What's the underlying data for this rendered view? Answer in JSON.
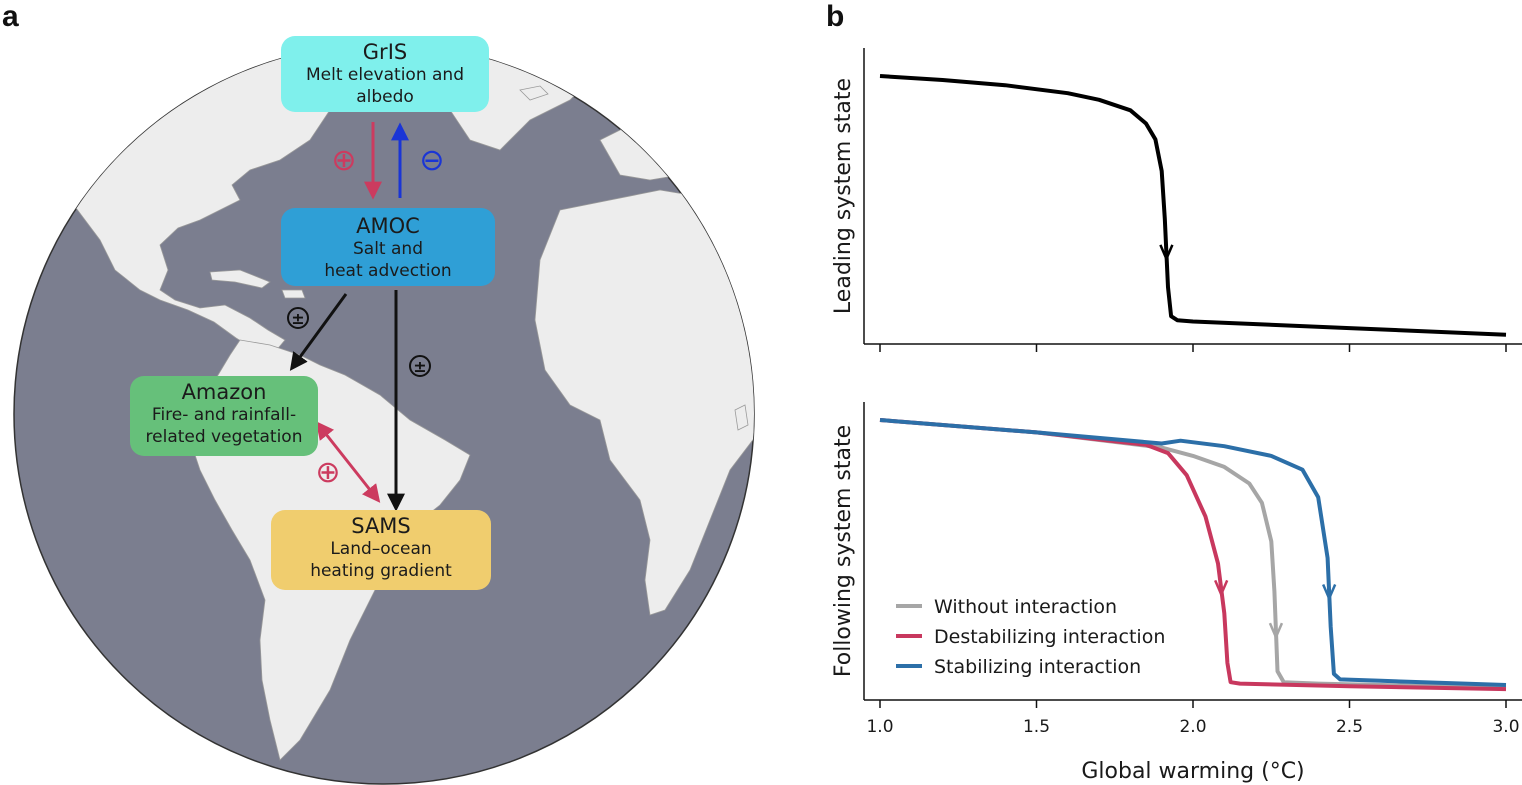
{
  "panels": {
    "a": "a",
    "b": "b"
  },
  "diagram": {
    "boxes": [
      {
        "id": "gris",
        "title": "GrIS",
        "subtitle": "Melt elevation and\nalbedo",
        "color": "#7ff0ec"
      },
      {
        "id": "amoc",
        "title": "AMOC",
        "subtitle": "Salt and\nheat advection",
        "color": "#2f9fd6"
      },
      {
        "id": "amazon",
        "title": "Amazon",
        "subtitle": "Fire- and rainfall-\nrelated vegetation",
        "color": "#66c07a"
      },
      {
        "id": "sams",
        "title": "SAMS",
        "subtitle": "Land–ocean\nheating gradient",
        "color": "#f0cd6e"
      }
    ],
    "signs": {
      "plus": "⊕",
      "minus": "⊖",
      "plusminus": "±"
    },
    "colors": {
      "ocean": "#7b7e8f",
      "land": "#ededed",
      "positive": "#cc3b5f",
      "negative": "#1a35d6",
      "neutral": "#111111"
    }
  },
  "chart_data": [
    {
      "type": "line",
      "ylabel": "Leading system state",
      "xlim": [
        1.0,
        3.0
      ],
      "series": [
        {
          "color": "#000000",
          "x": [
            1.0,
            1.2,
            1.4,
            1.6,
            1.7,
            1.8,
            1.85,
            1.88,
            1.9,
            1.91,
            1.92,
            1.93,
            1.95,
            2.0,
            2.5,
            3.0
          ],
          "y": [
            1.0,
            0.985,
            0.965,
            0.935,
            0.91,
            0.87,
            0.82,
            0.76,
            0.64,
            0.46,
            0.2,
            0.09,
            0.075,
            0.07,
            0.045,
            0.02
          ]
        }
      ]
    },
    {
      "type": "line",
      "xlabel": "Global warming (°C)",
      "ylabel": "Following system state",
      "xticks": [
        "1.0",
        "1.5",
        "2.0",
        "2.5",
        "3.0"
      ],
      "xlim": [
        1.0,
        3.0
      ],
      "series": [
        {
          "name": "Without interaction",
          "color": "#a6a6a6",
          "x": [
            1.0,
            1.5,
            1.9,
            2.0,
            2.1,
            2.18,
            2.22,
            2.25,
            2.26,
            2.27,
            2.29,
            2.4,
            3.0
          ],
          "y": [
            1.0,
            0.955,
            0.9,
            0.87,
            0.83,
            0.77,
            0.7,
            0.56,
            0.38,
            0.09,
            0.05,
            0.045,
            0.03
          ]
        },
        {
          "name": "Destabilizing interaction",
          "color": "#c8385e",
          "x": [
            1.0,
            1.5,
            1.85,
            1.92,
            1.98,
            2.04,
            2.08,
            2.1,
            2.11,
            2.12,
            2.15,
            2.5,
            3.0
          ],
          "y": [
            1.0,
            0.955,
            0.91,
            0.88,
            0.8,
            0.65,
            0.48,
            0.3,
            0.12,
            0.05,
            0.045,
            0.035,
            0.025
          ]
        },
        {
          "name": "Stabilizing interaction",
          "color": "#2c6fa8",
          "x": [
            1.0,
            1.5,
            1.9,
            1.96,
            2.1,
            2.25,
            2.35,
            2.4,
            2.43,
            2.44,
            2.45,
            2.47,
            2.6,
            3.0
          ],
          "y": [
            1.0,
            0.955,
            0.915,
            0.925,
            0.905,
            0.87,
            0.82,
            0.72,
            0.5,
            0.25,
            0.08,
            0.06,
            0.055,
            0.04
          ]
        }
      ]
    }
  ]
}
